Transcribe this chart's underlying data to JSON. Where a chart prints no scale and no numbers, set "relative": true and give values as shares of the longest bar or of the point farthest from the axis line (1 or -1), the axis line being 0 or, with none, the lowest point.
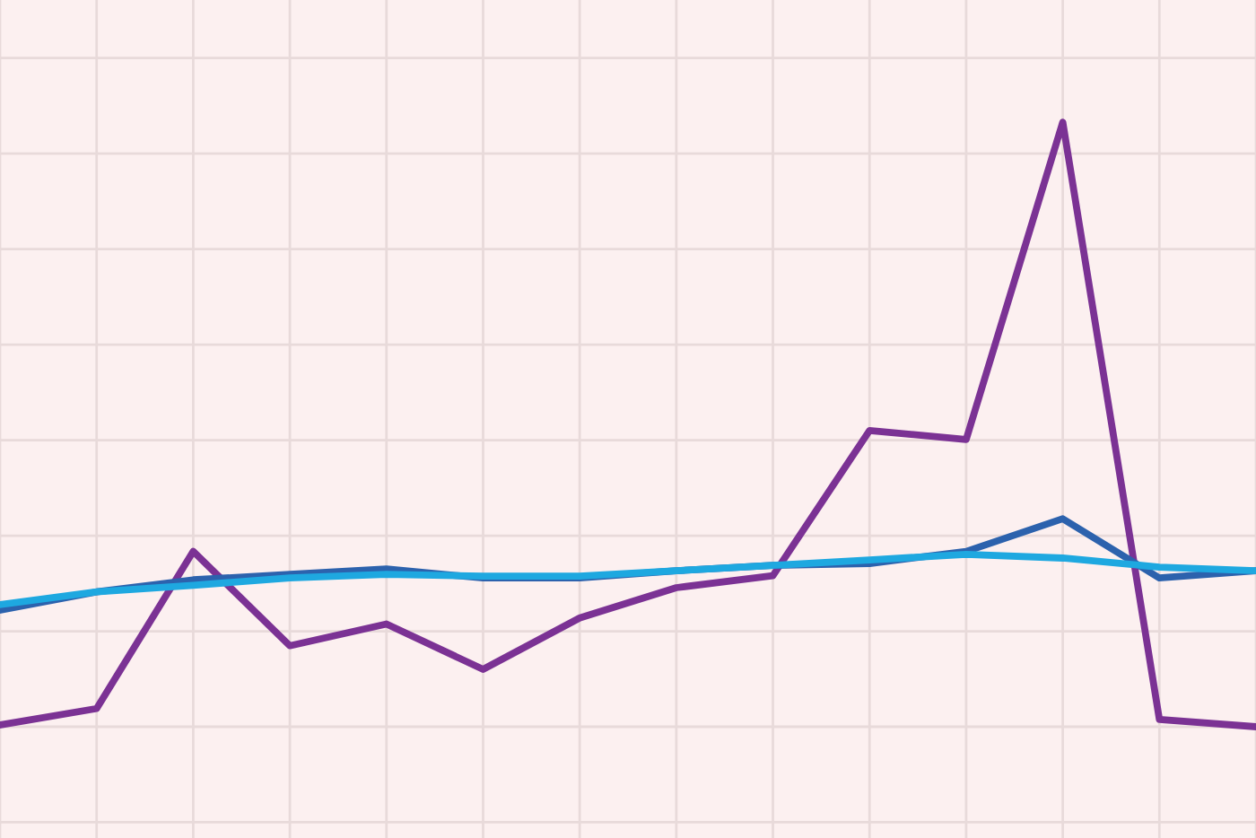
{
  "chart_data": {
    "type": "line",
    "relative": true,
    "grid": true,
    "legend": false,
    "marker": "none",
    "line_style": "solid",
    "categories": [
      null,
      null,
      null,
      null,
      null,
      null,
      null,
      null,
      null,
      null,
      null,
      null,
      null,
      null
    ],
    "series": [
      {
        "color": "#7b3294",
        "values": [
          0.003,
          0.03,
          0.29,
          0.134,
          0.17,
          0.095,
          0.18,
          0.23,
          0.25,
          0.49,
          0.475,
          1,
          0.012,
          0
        ]
      },
      {
        "color": "#2c62ad",
        "values": [
          0.193,
          0.223,
          0.243,
          0.252,
          0.261,
          0.246,
          0.246,
          0.258,
          0.267,
          0.27,
          0.29,
          0.344,
          0.246,
          0.258
        ]
      },
      {
        "color": "#1ea8e0",
        "values": [
          0.202,
          0.223,
          0.234,
          0.246,
          0.252,
          0.249,
          0.249,
          0.258,
          0.267,
          0.276,
          0.285,
          0.279,
          0.264,
          0.258
        ]
      }
    ]
  }
}
